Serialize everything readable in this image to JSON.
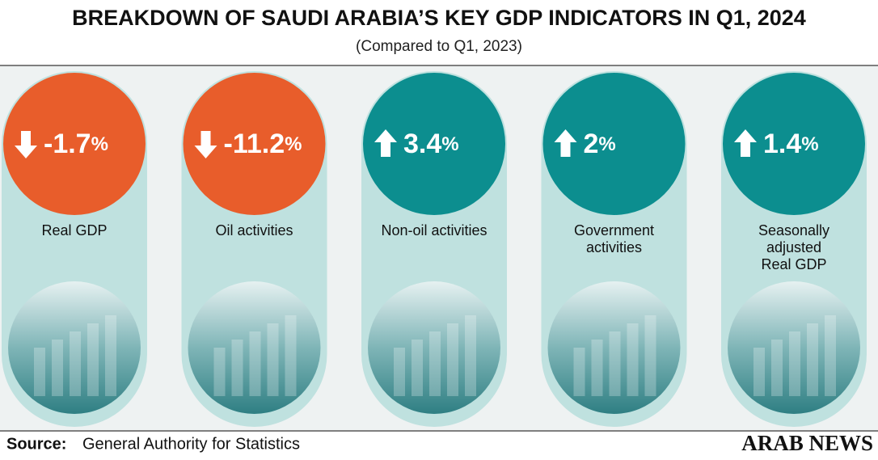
{
  "header": {
    "title": "BREAKDOWN OF SAUDI ARABIA’S KEY GDP INDICATORS IN Q1, 2024",
    "subtitle": "(Compared to Q1, 2023)"
  },
  "cards": [
    {
      "value": -1.7,
      "unit": "%",
      "direction": "down",
      "label": [
        "Real GDP"
      ]
    },
    {
      "value": -11.2,
      "unit": "%",
      "direction": "down",
      "label": [
        "Oil activities"
      ]
    },
    {
      "value": 3.4,
      "unit": "%",
      "direction": "up",
      "label": [
        "Non-oil activities"
      ]
    },
    {
      "value": 2,
      "unit": "%",
      "direction": "up",
      "label": [
        "Government",
        "activities"
      ]
    },
    {
      "value": 1.4,
      "unit": "%",
      "direction": "up",
      "label": [
        "Seasonally",
        "adjusted",
        "Real GDP"
      ]
    }
  ],
  "colors": {
    "down": "#e85d2b",
    "up": "#0c8e8f"
  },
  "footer": {
    "source_label": "Source:",
    "source": "General Authority for Statistics",
    "brand": "ARAB NEWS"
  }
}
